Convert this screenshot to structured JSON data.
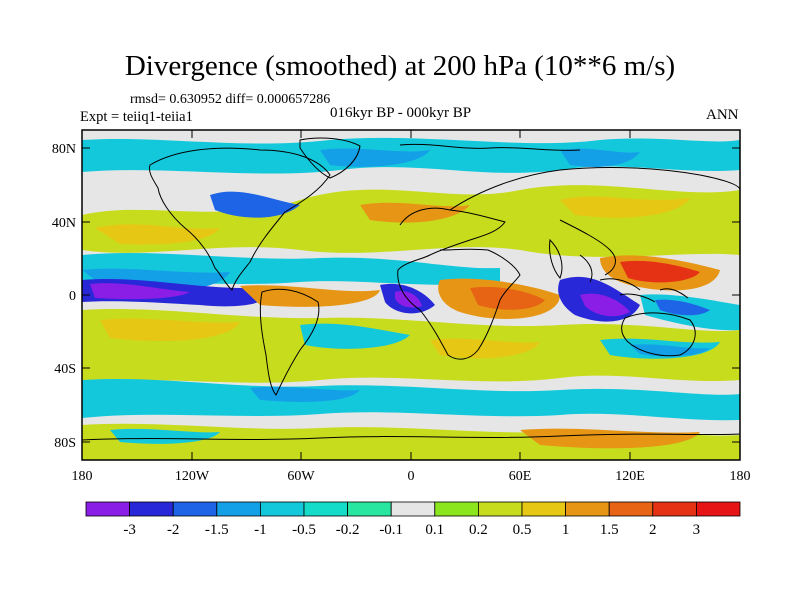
{
  "title": "Divergence (smoothed) at 200 hPa (10**6 m/s)",
  "stats": "rmsd= 0.630952 diff= 0.000657286",
  "expt": "Expt = teiiq1-teiia1",
  "center_label": "016kyr BP - 000kyr BP",
  "period": "ANN",
  "lat_labels": [
    "80N",
    "40N",
    "0",
    "40S",
    "80S"
  ],
  "lon_labels": [
    "180",
    "120W",
    "60W",
    "0",
    "60E",
    "120E",
    "180"
  ],
  "colorbar": {
    "labels": [
      "-3",
      "-2",
      "-1.5",
      "-1",
      "-0.5",
      "-0.2",
      "-0.1",
      "0.1",
      "0.2",
      "0.5",
      "1",
      "1.5",
      "2",
      "3"
    ],
    "colors": [
      "#8a1ee6",
      "#2828d8",
      "#1e64e6",
      "#14a0e6",
      "#14c8dc",
      "#14dcc8",
      "#28e6a0",
      "#e6e6e6",
      "#8ce61e",
      "#c8dc1e",
      "#e6c814",
      "#e69614",
      "#e66414",
      "#e63214",
      "#e61414"
    ]
  },
  "colors": {
    "neutral": "#e6e6e6",
    "positive_main": "#c8dc1e",
    "negative_main": "#14c8dc"
  }
}
